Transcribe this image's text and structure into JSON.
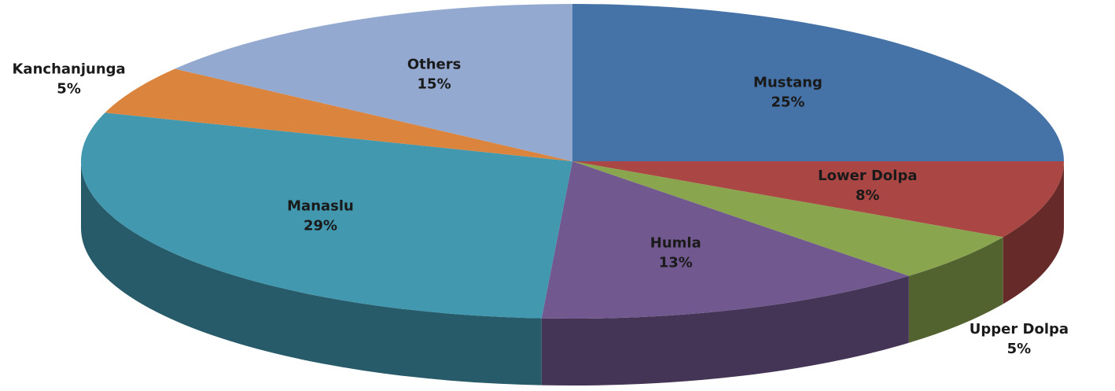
{
  "chart_data": {
    "type": "pie3d",
    "categories": [
      "Mustang",
      "Lower Dolpa",
      "Upper Dolpa",
      "Humla",
      "Manaslu",
      "Kanchanjunga",
      "Others"
    ],
    "values": [
      25,
      8,
      5,
      13,
      29,
      5,
      15
    ],
    "value_labels": [
      "25%",
      "8%",
      "5%",
      "13%",
      "29%",
      "5%",
      "15%"
    ],
    "colors": [
      "#4572a7",
      "#aa4643",
      "#89a54e",
      "#71588f",
      "#4198af",
      "#db843d",
      "#93a9cf"
    ]
  }
}
